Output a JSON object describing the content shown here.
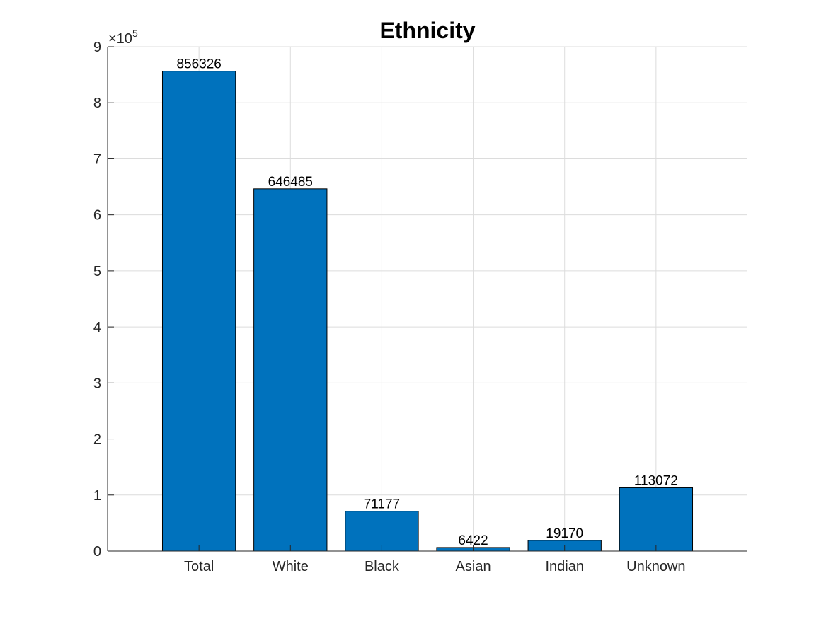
{
  "chart_data": {
    "type": "bar",
    "title": "Ethnicity",
    "xlabel": "",
    "ylabel": "",
    "categories": [
      "Total",
      "White",
      "Black",
      "Asian",
      "Indian",
      "Unknown"
    ],
    "values": [
      856326,
      646485,
      71177,
      6422,
      19170,
      113072
    ],
    "data_labels": [
      "856326",
      "646485",
      "71177",
      "6422",
      "19170",
      "113072"
    ],
    "ylim": [
      0,
      900000
    ],
    "xlim": [
      0,
      7
    ],
    "y_scale_factor": {
      "multiplier": "×10",
      "exponent": "5"
    },
    "y_ticks": [
      0,
      100000,
      200000,
      300000,
      400000,
      500000,
      600000,
      700000,
      800000,
      900000
    ],
    "y_tick_labels": [
      "0",
      "1",
      "2",
      "3",
      "4",
      "5",
      "6",
      "7",
      "8",
      "9"
    ],
    "x_ticks": [
      1,
      2,
      3,
      4,
      5,
      6
    ],
    "x_grid": [
      1,
      2,
      3,
      4,
      5,
      6
    ],
    "grid": true,
    "legend": "none",
    "colors": {
      "bar_fill": "#0072BD",
      "bar_edge": "#000000",
      "axis": "#262626",
      "grid": "#dcdcdc",
      "background": "#ffffff"
    }
  }
}
